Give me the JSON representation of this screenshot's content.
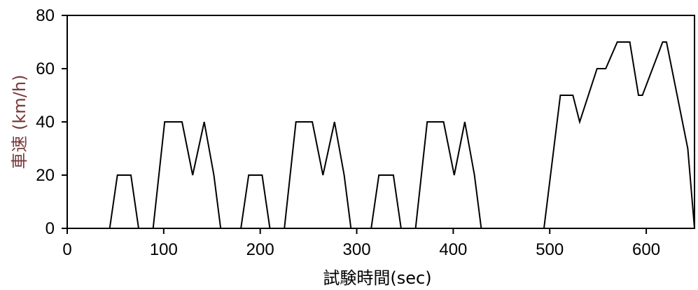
{
  "chart_data": {
    "type": "line",
    "title": "",
    "xlabel": "試験時間(sec)",
    "ylabel": "車速 (km/h)",
    "xlim": [
      0,
      650
    ],
    "ylim": [
      0,
      80
    ],
    "x_ticks": [
      0,
      100,
      200,
      300,
      400,
      500,
      600
    ],
    "y_ticks": [
      0,
      20,
      40,
      60,
      80
    ],
    "grid": false,
    "legend": "none",
    "series": [
      {
        "x": [
          0,
          44,
          52,
          66,
          74,
          89,
          101,
          119,
          130,
          142,
          152,
          159,
          180,
          188,
          202,
          210,
          225,
          237,
          254,
          265,
          277,
          287,
          294,
          315,
          323,
          338,
          346,
          361,
          373,
          390,
          401,
          412,
          422,
          429,
          494,
          511,
          524,
          531,
          549,
          558,
          570,
          583,
          592,
          596,
          617,
          621,
          643,
          650
        ],
        "y": [
          0,
          0,
          20,
          20,
          0,
          0,
          40,
          40,
          20,
          40,
          20,
          0,
          0,
          20,
          20,
          0,
          0,
          40,
          40,
          20,
          40,
          20,
          0,
          0,
          20,
          20,
          0,
          0,
          40,
          40,
          20,
          40,
          20,
          0,
          0,
          50,
          50,
          40,
          60,
          60,
          70,
          70,
          50,
          50,
          70,
          70,
          30,
          0
        ]
      }
    ]
  },
  "colors": {
    "line": "#000000",
    "axis": "#000000",
    "xlabel": "#000000",
    "ylabel": "#7a3b3b"
  }
}
